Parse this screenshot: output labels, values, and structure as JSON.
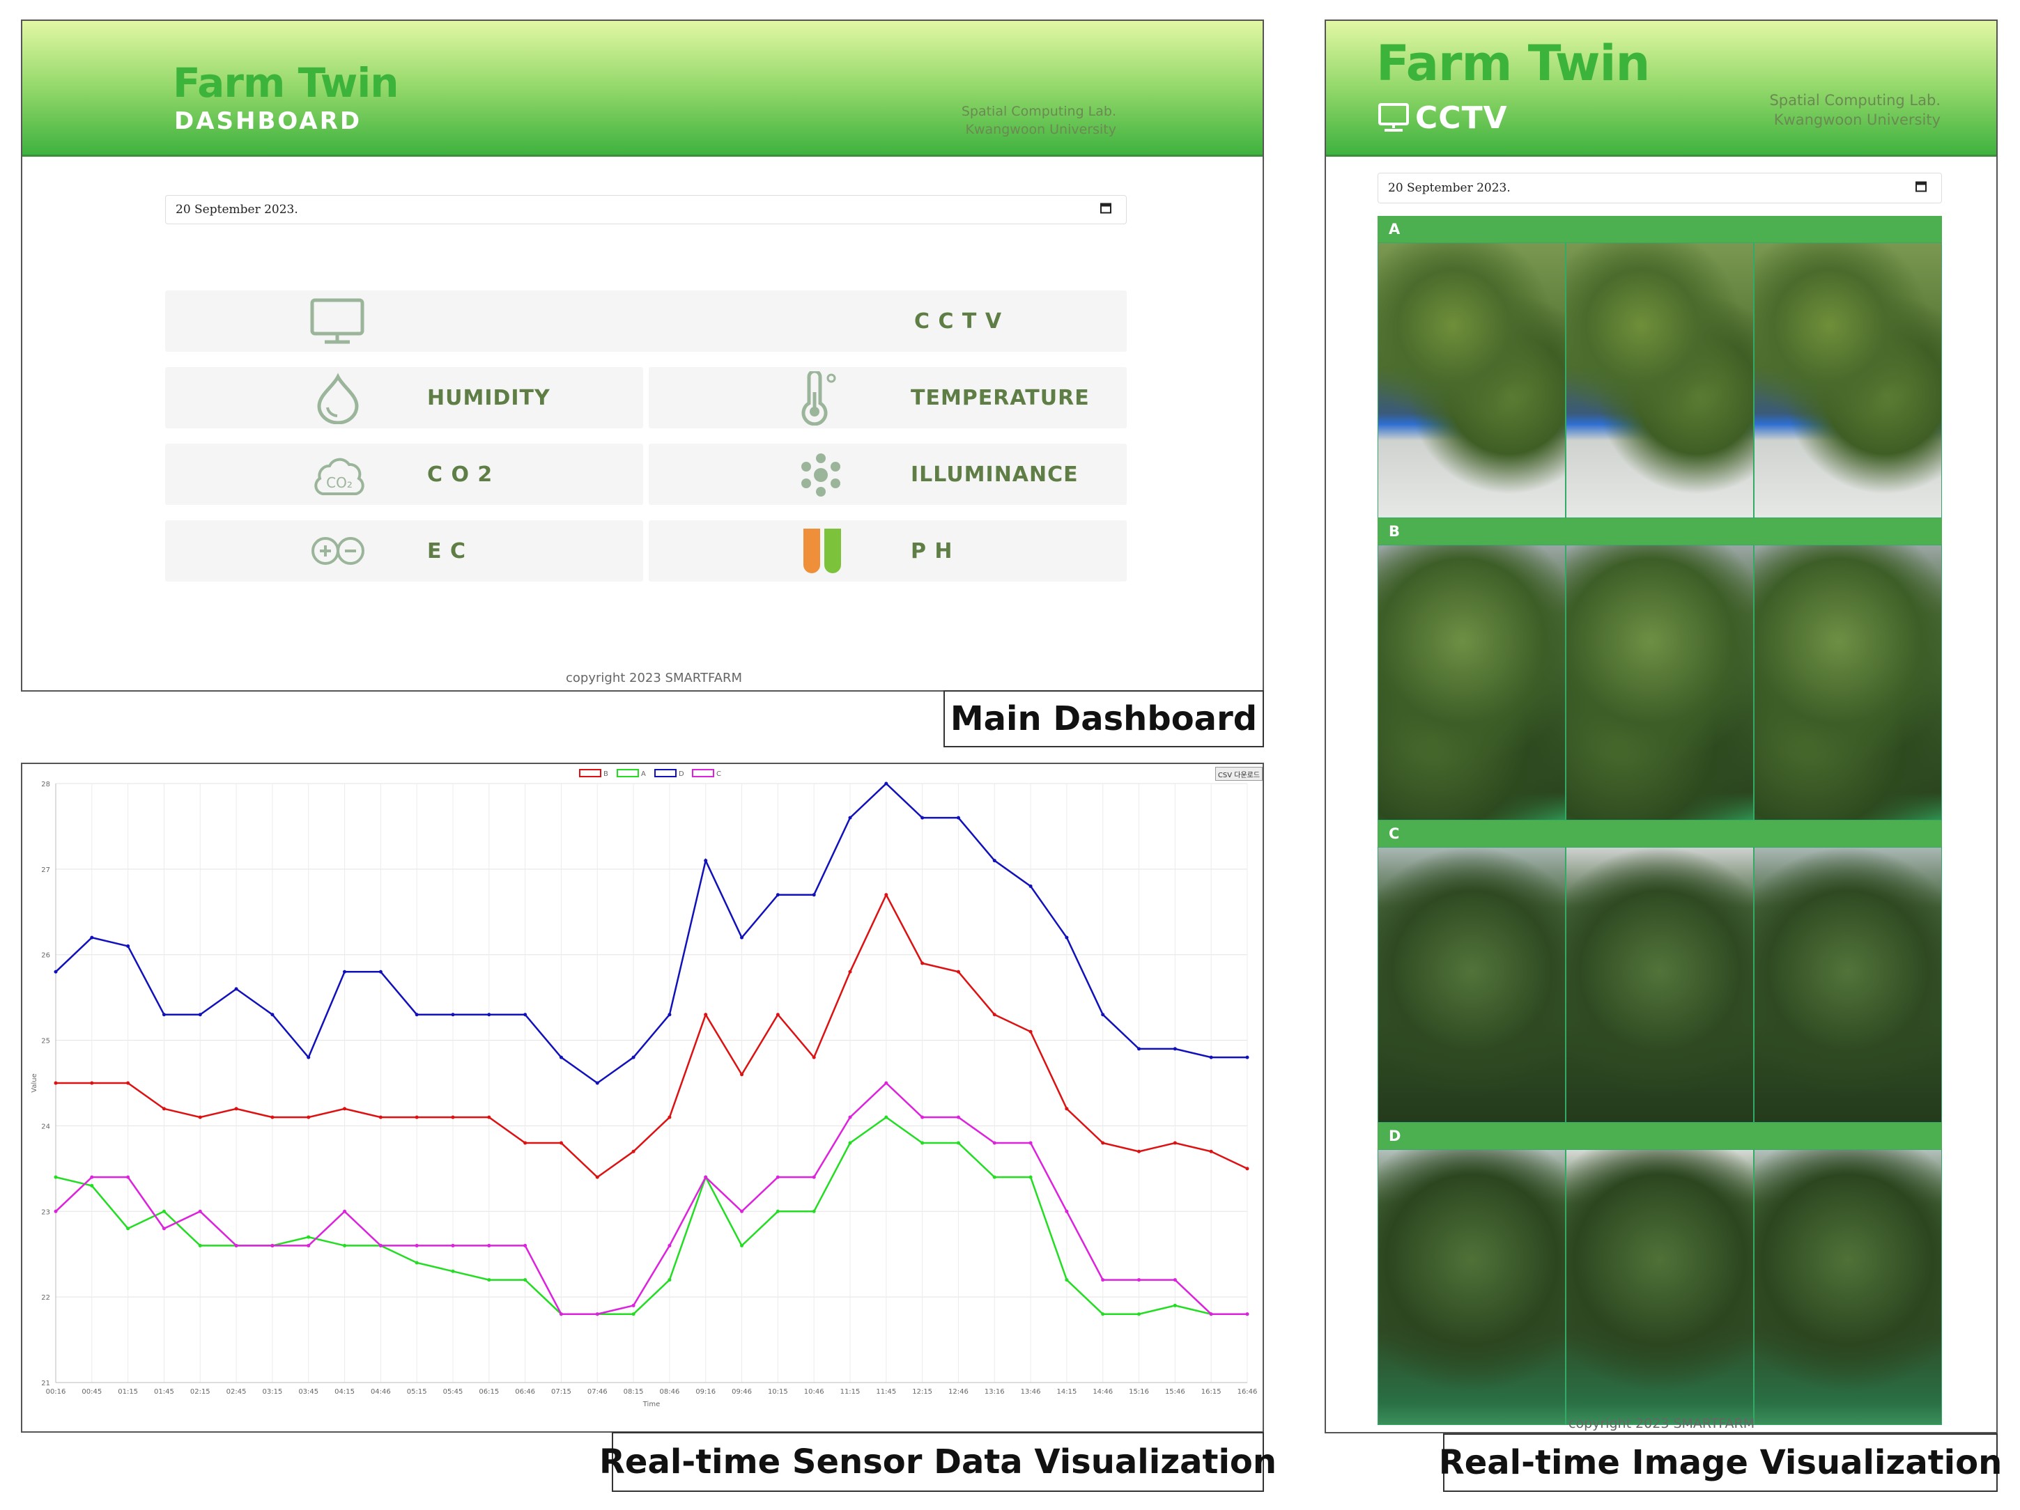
{
  "dashboard": {
    "brand": "Farm Twin",
    "subtitle": "DASHBOARD",
    "lab_line1": "Spatial Computing Lab.",
    "lab_line2": "Kwangwoon University",
    "date": "20 September 2023.",
    "cards": {
      "cctv": "C C T V",
      "humidity": "HUMIDITY",
      "temperature": "TEMPERATURE",
      "co2": "C O 2",
      "illuminance": "ILLUMINANCE",
      "ec": "E C",
      "ph": "P H"
    },
    "co2_icon_text": "CO₂",
    "copyright": "copyright 2023 SMARTFARM",
    "caption": "Main Dashboard"
  },
  "cctv_page": {
    "brand": "Farm Twin",
    "subtitle": "CCTV",
    "lab_line1": "Spatial Computing Lab.",
    "lab_line2": "Kwangwoon University",
    "date": "20 September 2023.",
    "sections": [
      "A",
      "B",
      "C",
      "D"
    ],
    "copyright": "copyright 2023 SMARTFARM",
    "caption": "Real-time Image Visualization"
  },
  "sensor_page": {
    "caption": "Real-time Sensor Data Visualization",
    "csv_button": "CSV 다운로드"
  },
  "colors": {
    "accent_green": "#3cb43c",
    "card_text": "#5f7e46",
    "series_B": "#dd1111",
    "series_A": "#22dd22",
    "series_D": "#1111bb",
    "series_C": "#dd22dd"
  },
  "chart_data": {
    "type": "line",
    "xlabel": "Time",
    "ylabel": "Value",
    "ylim": [
      21,
      28
    ],
    "yticks": [
      21,
      22,
      23,
      24,
      25,
      26,
      27,
      28
    ],
    "grid": true,
    "legend": "top-center",
    "x": [
      "00:16",
      "00:45",
      "01:15",
      "01:45",
      "02:15",
      "02:45",
      "03:15",
      "03:45",
      "04:15",
      "04:46",
      "05:15",
      "05:45",
      "06:15",
      "06:46",
      "07:15",
      "07:46",
      "08:15",
      "08:46",
      "09:16",
      "09:46",
      "10:15",
      "10:46",
      "11:15",
      "11:45",
      "12:15",
      "12:46",
      "13:16",
      "13:46",
      "14:15",
      "14:46",
      "15:16",
      "15:46",
      "16:15",
      "16:46"
    ],
    "series": [
      {
        "name": "B",
        "color": "#dd1111",
        "values": [
          24.5,
          24.5,
          24.5,
          24.2,
          24.1,
          24.2,
          24.1,
          24.1,
          24.2,
          24.1,
          24.1,
          24.1,
          24.1,
          23.8,
          23.8,
          23.4,
          23.7,
          24.1,
          25.3,
          24.6,
          25.3,
          24.8,
          25.8,
          26.7,
          25.9,
          25.8,
          25.3,
          25.1,
          24.2,
          23.8,
          23.7,
          23.8,
          23.7,
          23.5
        ]
      },
      {
        "name": "A",
        "color": "#22dd22",
        "values": [
          23.4,
          23.3,
          22.8,
          23.0,
          22.6,
          22.6,
          22.6,
          22.7,
          22.6,
          22.6,
          22.4,
          22.3,
          22.2,
          22.2,
          21.8,
          21.8,
          21.8,
          22.2,
          23.4,
          22.6,
          23.0,
          23.0,
          23.8,
          24.1,
          23.8,
          23.8,
          23.4,
          23.4,
          22.2,
          21.8,
          21.8,
          21.9,
          21.8,
          21.8
        ]
      },
      {
        "name": "D",
        "color": "#1111bb",
        "values": [
          25.8,
          26.2,
          26.1,
          25.3,
          25.3,
          25.6,
          25.3,
          24.8,
          25.8,
          25.8,
          25.3,
          25.3,
          25.3,
          25.3,
          24.8,
          24.5,
          24.8,
          25.3,
          27.1,
          26.2,
          26.7,
          26.7,
          27.6,
          28.0,
          27.6,
          27.6,
          27.1,
          26.8,
          26.2,
          25.3,
          24.9,
          24.9,
          24.8,
          24.8
        ]
      },
      {
        "name": "C",
        "color": "#dd22dd",
        "values": [
          23.0,
          23.4,
          23.4,
          22.8,
          23.0,
          22.6,
          22.6,
          22.6,
          23.0,
          22.6,
          22.6,
          22.6,
          22.6,
          22.6,
          21.8,
          21.8,
          21.9,
          22.6,
          23.4,
          23.0,
          23.4,
          23.4,
          24.1,
          24.5,
          24.1,
          24.1,
          23.8,
          23.8,
          23.0,
          22.2,
          22.2,
          22.2,
          21.8,
          21.8
        ]
      }
    ]
  }
}
